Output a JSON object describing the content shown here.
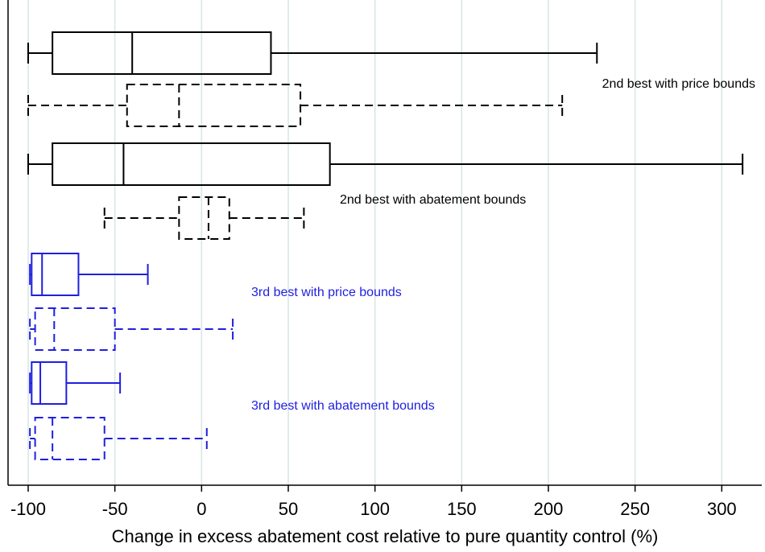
{
  "chart_data": {
    "type": "box",
    "xlabel": "Change in excess abatement cost relative to pure quantity control (%)",
    "xlim": [
      -112,
      320
    ],
    "x_ticks": [
      -100,
      -50,
      0,
      50,
      100,
      150,
      200,
      250,
      300
    ],
    "x_tick_labels": [
      "-100",
      "-50",
      "0",
      "50",
      "100",
      "150",
      "200",
      "250",
      "300"
    ],
    "grid": true,
    "colors": {
      "black": "#000000",
      "blue": "#1f1fe0",
      "grid": "#d6e6e6"
    },
    "groups": [
      {
        "label": "2nd best with price bounds",
        "color": "#000000",
        "boxes": [
          {
            "style": "solid",
            "whisker_low": -100,
            "q1": -86,
            "median": -40,
            "q3": 40,
            "whisker_high": 228
          },
          {
            "style": "dashed",
            "whisker_low": -100,
            "q1": -43,
            "median": -13,
            "q3": 57,
            "whisker_high": 208
          }
        ]
      },
      {
        "label": "2nd best with abatement bounds",
        "color": "#000000",
        "boxes": [
          {
            "style": "solid",
            "whisker_low": -100,
            "q1": -86,
            "median": -45,
            "q3": 74,
            "whisker_high": 312
          },
          {
            "style": "dashed",
            "whisker_low": -56,
            "q1": -13,
            "median": 4,
            "q3": 16,
            "whisker_high": 59
          }
        ]
      },
      {
        "label": "3rd best with price bounds",
        "color": "#1f1fe0",
        "boxes": [
          {
            "style": "solid",
            "whisker_low": -99,
            "q1": -98,
            "median": -92,
            "q3": -71,
            "whisker_high": -31
          },
          {
            "style": "dashed",
            "whisker_low": -99,
            "q1": -96,
            "median": -85,
            "q3": -50,
            "whisker_high": 18
          }
        ]
      },
      {
        "label": "3rd best with abatement bounds",
        "color": "#1f1fe0",
        "boxes": [
          {
            "style": "solid",
            "whisker_low": -99,
            "q1": -98,
            "median": -93,
            "q3": -78,
            "whisker_high": -47
          },
          {
            "style": "dashed",
            "whisker_low": -99,
            "q1": -96,
            "median": -86,
            "q3": -56,
            "whisker_high": 3
          }
        ]
      }
    ]
  }
}
